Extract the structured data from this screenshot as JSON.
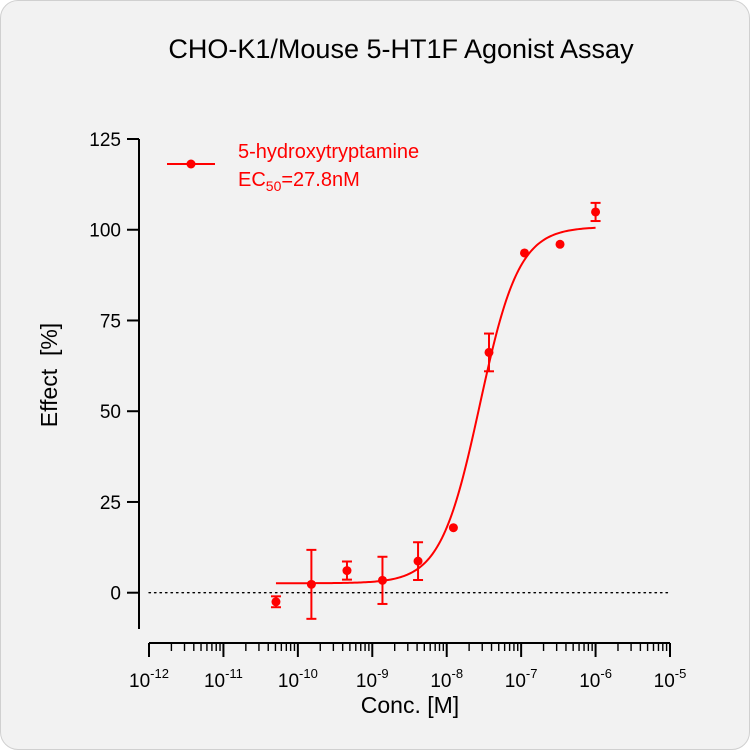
{
  "chart_data": {
    "type": "scatter",
    "title": "CHO-K1/Mouse 5-HT1F Agonist Assay",
    "xlabel": "Conc. [M]",
    "ylabel": "Effect  [%]",
    "x_scale": "log",
    "xlim": [
      1e-12,
      1e-05
    ],
    "ylim": [
      -10,
      125
    ],
    "y_ticks": [
      0,
      25,
      50,
      75,
      100,
      125
    ],
    "x_tick_labels": [
      {
        "base": "10",
        "exp": "-12"
      },
      {
        "base": "10",
        "exp": "-11"
      },
      {
        "base": "10",
        "exp": "-10"
      },
      {
        "base": "10",
        "exp": "-9"
      },
      {
        "base": "10",
        "exp": "-8"
      },
      {
        "base": "10",
        "exp": "-7"
      },
      {
        "base": "10",
        "exp": "-6"
      },
      {
        "base": "10",
        "exp": "-5"
      }
    ],
    "reference_line": {
      "y": 0,
      "style": "dotted"
    },
    "legend": {
      "placement": "top-left",
      "label": "5-hydroxytryptamine",
      "ec50_prefix": "EC",
      "ec50_sub": "50",
      "ec50_value": "=27.8nM"
    },
    "series": [
      {
        "name": "5-hydroxytryptamine",
        "color": "#ff0000",
        "x": [
          5.08e-11,
          1.52e-10,
          4.57e-10,
          1.37e-09,
          4.12e-09,
          1.23e-08,
          3.7e-08,
          1.11e-07,
          3.33e-07,
          1e-06
        ],
        "y": [
          -2.5,
          2.3,
          6.1,
          3.4,
          8.7,
          17.9,
          66.2,
          93.6,
          96.0,
          104.9
        ],
        "error": [
          1.5,
          9.5,
          2.5,
          6.5,
          5.2,
          0.6,
          5.2,
          0.6,
          0.6,
          2.5
        ],
        "fit": {
          "model": "4PL",
          "bottom": 2.6,
          "top": 100.8,
          "ec50": 2.78e-08,
          "hill": 1.65
        }
      }
    ]
  }
}
